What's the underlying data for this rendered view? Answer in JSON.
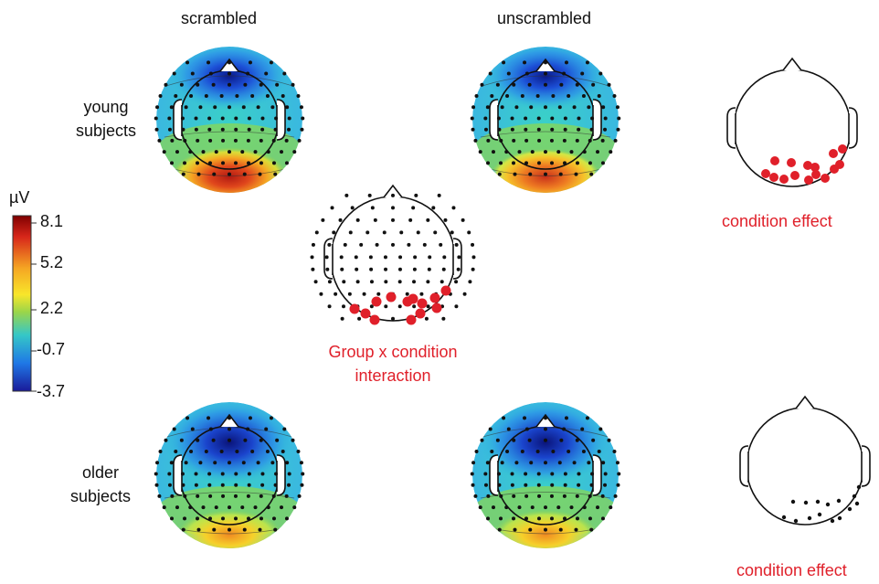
{
  "columns": {
    "left": "scrambled",
    "right": "unscrambled"
  },
  "rows": {
    "young": [
      "young",
      "subjects"
    ],
    "older": [
      "older",
      "subjects"
    ]
  },
  "colorbar": {
    "unit": "µV",
    "ticks": [
      "8.1",
      "5.2",
      "2.2",
      "-0.7",
      "-3.7"
    ],
    "stops": [
      "#7f0000",
      "#d7261a",
      "#f5a623",
      "#f8e62a",
      "#9ad54a",
      "#35c7c7",
      "#1f78e6",
      "#1a1a99"
    ]
  },
  "interaction_label": [
    "Group x condition",
    "interaction"
  ],
  "condition_effect_label": "condition effect",
  "highlight_color": "#e0202a"
}
